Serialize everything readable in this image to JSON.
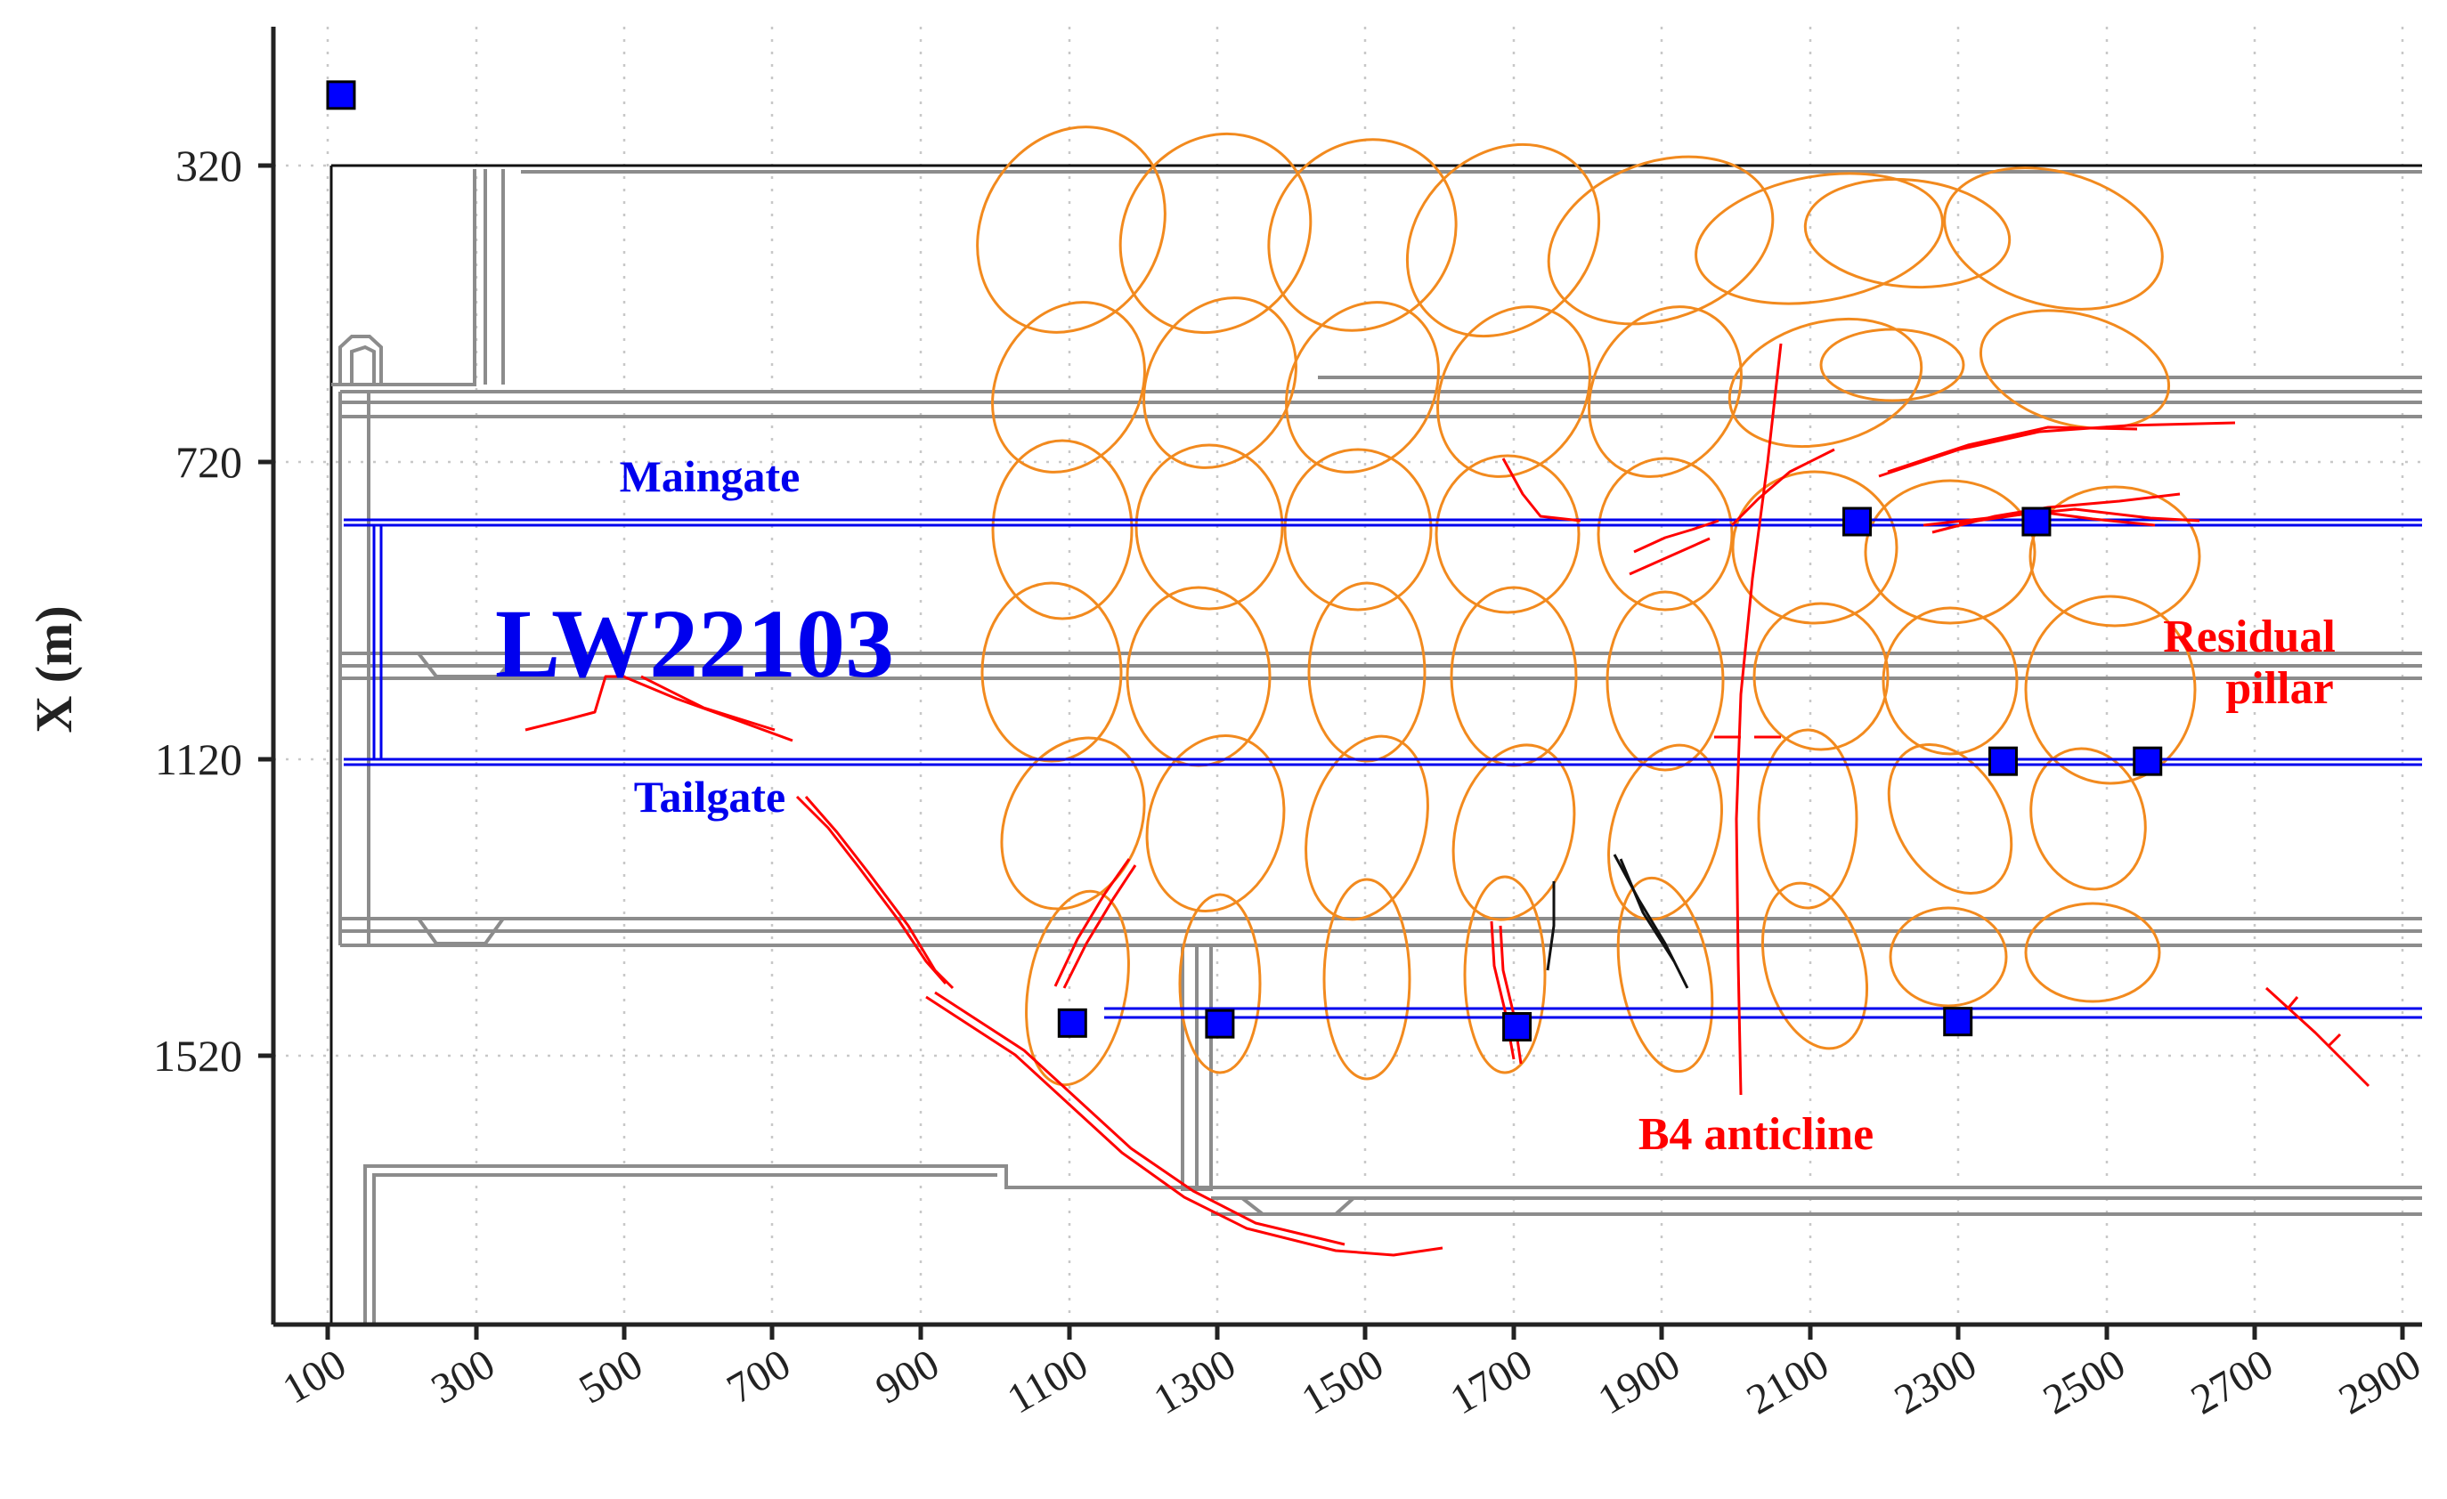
{
  "axes": {
    "ylabel": "X (m)",
    "x_ticks": [
      "100",
      "300",
      "500",
      "700",
      "900",
      "1100",
      "1300",
      "1500",
      "1700",
      "1900",
      "2100",
      "2300",
      "2500",
      "2700",
      "2900"
    ],
    "y_ticks": [
      "320",
      "720",
      "1120",
      "1520"
    ],
    "x_range": [
      30,
      2930
    ],
    "y_range": [
      120,
      1880
    ],
    "grid": "dotted"
  },
  "labels": {
    "panel": "LW22103",
    "maingate": "Maingate",
    "tailgate": "Tailgate",
    "residual_pillar_line1": "Residual",
    "residual_pillar_line2": "pillar",
    "anticline": "B4 anticline"
  },
  "colors": {
    "roadway": "#8c8c8c",
    "gate": "#0000ee",
    "fault": "#ff0000",
    "ellipse": "#f28a1e",
    "station": "#0000ff",
    "axis": "#222222"
  },
  "stations": [
    {
      "x": 118,
      "y": 225
    },
    {
      "x": 2164,
      "y": 800
    },
    {
      "x": 2406,
      "y": 800
    },
    {
      "x": 2361,
      "y": 1123
    },
    {
      "x": 2556,
      "y": 1123
    },
    {
      "x": 1105,
      "y": 1476
    },
    {
      "x": 1304,
      "y": 1477
    },
    {
      "x": 1705,
      "y": 1481
    },
    {
      "x": 2300,
      "y": 1474
    }
  ]
}
